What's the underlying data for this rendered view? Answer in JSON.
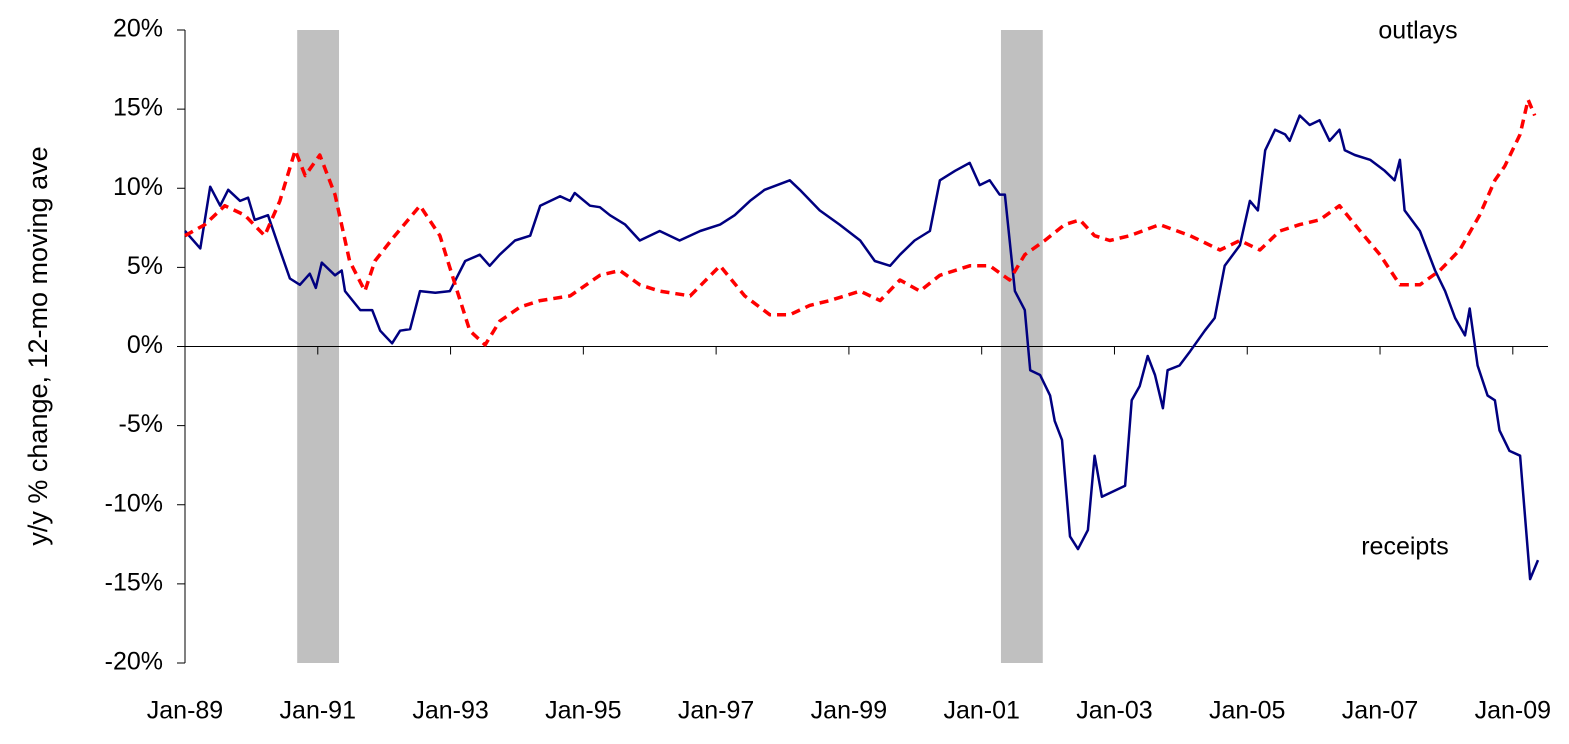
{
  "chart_data": {
    "type": "line",
    "y_label": "y/y % change, 12-mo moving ave",
    "annotations": [
      "outlays",
      "receipts"
    ],
    "xlim": [
      1989,
      2009.53
    ],
    "xticks": [
      {
        "value": 1989,
        "label": "Jan-89"
      },
      {
        "value": 1991,
        "label": "Jan-91"
      },
      {
        "value": 1993,
        "label": "Jan-93"
      },
      {
        "value": 1995,
        "label": "Jan-95"
      },
      {
        "value": 1997,
        "label": "Jan-97"
      },
      {
        "value": 1999,
        "label": "Jan-99"
      },
      {
        "value": 2001,
        "label": "Jan-01"
      },
      {
        "value": 2003,
        "label": "Jan-03"
      },
      {
        "value": 2005,
        "label": "Jan-05"
      },
      {
        "value": 2007,
        "label": "Jan-07"
      },
      {
        "value": 2009,
        "label": "Jan-09"
      }
    ],
    "ylim": [
      -20,
      20
    ],
    "yticks": [
      {
        "value": -20,
        "label": "-20%"
      },
      {
        "value": -15,
        "label": "-15%"
      },
      {
        "value": -10,
        "label": "-10%"
      },
      {
        "value": -5,
        "label": "-5%"
      },
      {
        "value": 0,
        "label": "0%"
      },
      {
        "value": 5,
        "label": "5%"
      },
      {
        "value": 10,
        "label": "10%"
      },
      {
        "value": 15,
        "label": "15%"
      },
      {
        "value": 20,
        "label": "20%"
      }
    ],
    "recessions": [
      [
        1990.69,
        1991.32
      ],
      [
        2001.29,
        2001.92
      ]
    ],
    "recession_color": "#c0c0c0",
    "series": [
      {
        "name": "receipts",
        "color": "#000080",
        "dashed": false,
        "x": [
          1989,
          1989.23,
          1989.38,
          1989.53,
          1989.65,
          1989.83,
          1989.95,
          1990.05,
          1990.25,
          1990.43,
          1990.58,
          1990.73,
          1990.88,
          1990.97,
          1991.06,
          1991.26,
          1991.36,
          1991.41,
          1991.64,
          1991.82,
          1991.94,
          1992.12,
          1992.24,
          1992.39,
          1992.54,
          1992.77,
          1992.99,
          1993.22,
          1993.44,
          1993.59,
          1993.74,
          1993.97,
          1994.2,
          1994.35,
          1994.65,
          1994.8,
          1994.87,
          1995.1,
          1995.25,
          1995.4,
          1995.63,
          1995.85,
          1996.15,
          1996.45,
          1996.76,
          1997.06,
          1997.28,
          1997.51,
          1997.73,
          1998.11,
          1998.26,
          1998.56,
          1998.86,
          1999.17,
          1999.39,
          1999.62,
          1999.77,
          1999.99,
          2000.22,
          2000.37,
          2000.6,
          2000.82,
          2000.97,
          2001.12,
          2001.27,
          2001.35,
          2001.5,
          2001.65,
          2001.73,
          2001.88,
          2002.03,
          2002.1,
          2002.21,
          2002.33,
          2002.45,
          2002.6,
          2002.7,
          2002.81,
          2003.01,
          2003.16,
          2003.26,
          2003.38,
          2003.5,
          2003.61,
          2003.73,
          2003.8,
          2003.98,
          2004.14,
          2004.36,
          2004.51,
          2004.66,
          2004.89,
          2005.04,
          2005.16,
          2005.27,
          2005.42,
          2005.57,
          2005.64,
          2005.79,
          2005.94,
          2006.09,
          2006.24,
          2006.39,
          2006.47,
          2006.62,
          2006.85,
          2007.07,
          2007.22,
          2007.3,
          2007.37,
          2007.6,
          2007.83,
          2007.98,
          2008.13,
          2008.28,
          2008.35,
          2008.47,
          2008.62,
          2008.73,
          2008.8,
          2008.95,
          2009.11,
          2009.26,
          2009.38
        ],
        "values": [
          7.3,
          6.2,
          10.1,
          8.9,
          9.9,
          9.2,
          9.4,
          8.0,
          8.3,
          6.1,
          4.3,
          3.9,
          4.6,
          3.7,
          5.3,
          4.5,
          4.8,
          3.5,
          2.3,
          2.3,
          1.0,
          0.2,
          1.0,
          1.1,
          3.5,
          3.4,
          3.5,
          5.4,
          5.8,
          5.1,
          5.8,
          6.7,
          7.0,
          8.9,
          9.5,
          9.2,
          9.7,
          8.9,
          8.8,
          8.3,
          7.7,
          6.7,
          7.3,
          6.7,
          7.3,
          7.7,
          8.3,
          9.2,
          9.9,
          10.5,
          9.9,
          8.6,
          7.7,
          6.7,
          5.4,
          5.1,
          5.8,
          6.7,
          7.3,
          10.5,
          11.1,
          11.6,
          10.2,
          10.5,
          9.6,
          9.6,
          3.5,
          2.3,
          -1.5,
          -1.8,
          -3.1,
          -4.7,
          -5.9,
          -12.0,
          -12.8,
          -11.6,
          -6.9,
          -9.5,
          -9.1,
          -8.8,
          -3.4,
          -2.5,
          -0.6,
          -1.8,
          -3.9,
          -1.5,
          -1.2,
          -0.3,
          1.0,
          1.8,
          5.1,
          6.4,
          9.2,
          8.6,
          12.4,
          13.7,
          13.4,
          13.0,
          14.6,
          14.0,
          14.3,
          13.0,
          13.7,
          12.4,
          12.1,
          11.8,
          11.1,
          10.5,
          11.8,
          8.6,
          7.3,
          4.8,
          3.5,
          1.8,
          0.7,
          2.4,
          -1.2,
          -3.1,
          -3.4,
          -5.3,
          -6.6,
          -6.9,
          -14.7,
          -13.5
        ]
      },
      {
        "name": "outlays",
        "color": "#ff0000",
        "dashed": true,
        "x": [
          1989,
          1989.3,
          1989.6,
          1989.9,
          1990.2,
          1990.43,
          1990.66,
          1990.81,
          1991.03,
          1991.26,
          1991.48,
          1991.71,
          1991.86,
          1992.16,
          1992.54,
          1992.84,
          1993.07,
          1993.29,
          1993.52,
          1993.74,
          1994.05,
          1994.35,
          1994.8,
          1995.25,
          1995.55,
          1995.85,
          1996.15,
          1996.61,
          1997.06,
          1997.43,
          1997.81,
          1998.11,
          1998.41,
          1998.71,
          1999.17,
          1999.47,
          1999.77,
          2000.07,
          2000.37,
          2000.82,
          2001.12,
          2001.42,
          2001.65,
          2001.95,
          2002.25,
          2002.48,
          2002.7,
          2002.93,
          2003.23,
          2003.68,
          2004.14,
          2004.59,
          2004.89,
          2005.19,
          2005.49,
          2005.79,
          2006.09,
          2006.39,
          2006.7,
          2007,
          2007.3,
          2007.6,
          2007.9,
          2008.2,
          2008.5,
          2008.73,
          2008.88,
          2009.11,
          2009.23,
          2009.33
        ],
        "values": [
          7.0,
          7.7,
          8.9,
          8.3,
          7.0,
          9.2,
          12.4,
          10.8,
          12.1,
          9.6,
          5.4,
          3.5,
          5.4,
          7.0,
          8.9,
          7.0,
          3.9,
          1.0,
          0.1,
          1.6,
          2.5,
          2.9,
          3.2,
          4.5,
          4.8,
          3.9,
          3.5,
          3.2,
          5.1,
          3.2,
          2.0,
          2.0,
          2.6,
          2.9,
          3.5,
          2.9,
          4.2,
          3.5,
          4.5,
          5.1,
          5.1,
          4.2,
          5.8,
          6.7,
          7.7,
          8.0,
          7.0,
          6.7,
          7.0,
          7.7,
          7.0,
          6.1,
          6.7,
          6.1,
          7.3,
          7.7,
          8.0,
          8.9,
          7.3,
          5.8,
          3.9,
          3.9,
          4.8,
          6.1,
          8.3,
          10.5,
          11.4,
          13.4,
          15.6,
          14.6
        ]
      }
    ]
  }
}
